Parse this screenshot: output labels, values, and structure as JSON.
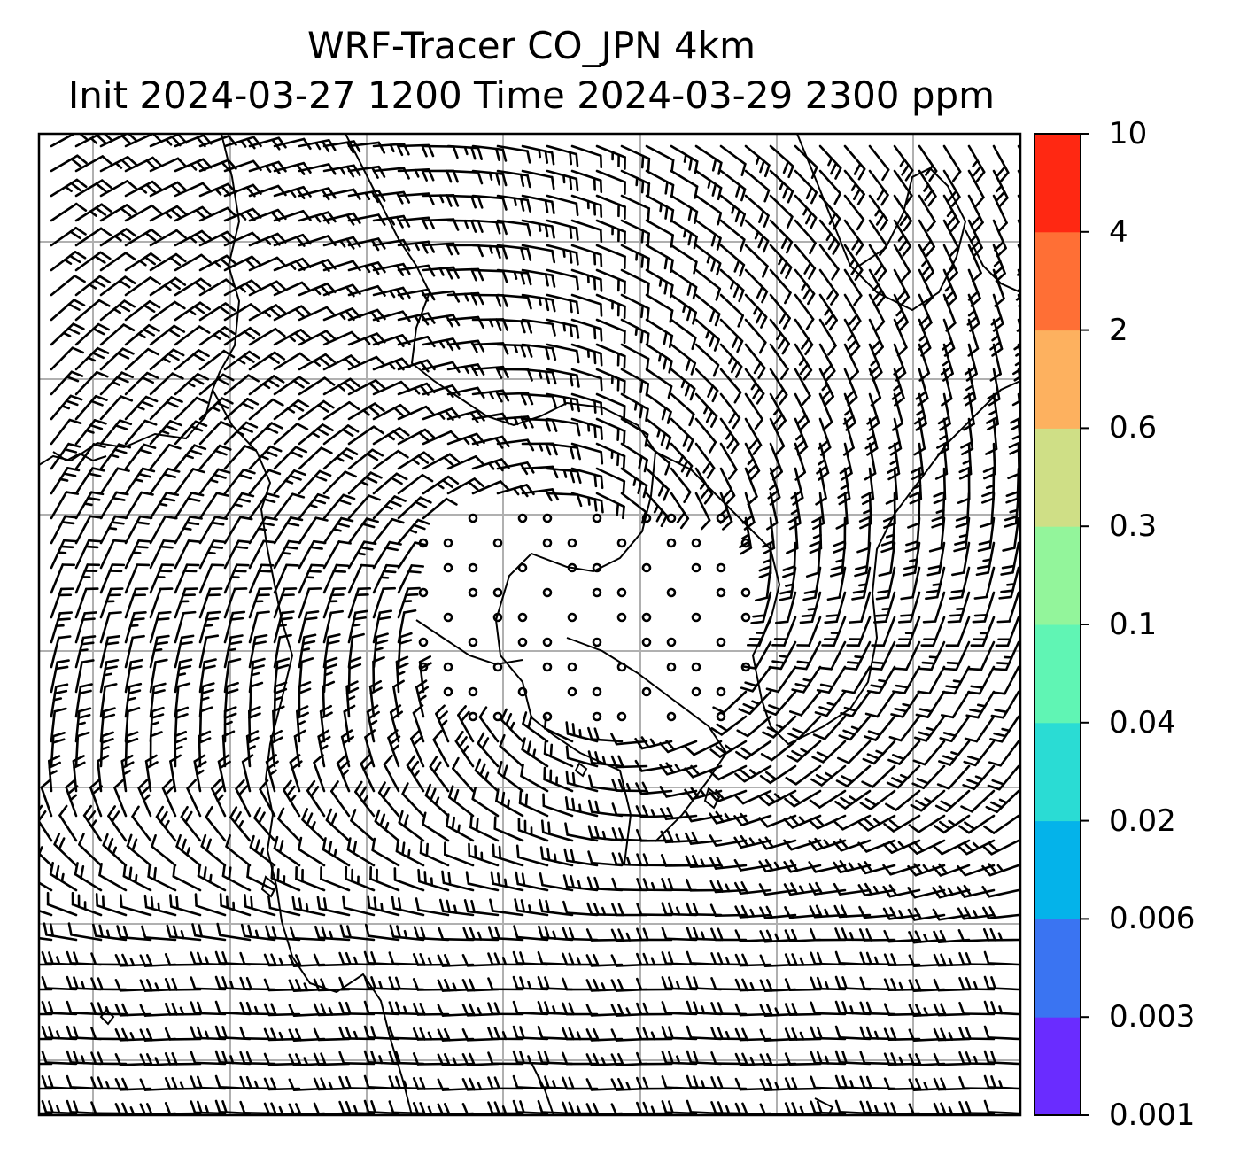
{
  "title": {
    "line1": "WRF-Tracer CO_JPN 4km",
    "line2": "Init 2024-03-27 1200 Time 2024-03-29 2300 ppm"
  },
  "colorbar": {
    "levels": [
      "0.001",
      "0.003",
      "0.006",
      "0.02",
      "0.04",
      "0.1",
      "0.3",
      "0.6",
      "2",
      "4",
      "10"
    ],
    "colors": [
      "#6a2cff",
      "#3a74f2",
      "#04b3ea",
      "#2adcd4",
      "#60f5b4",
      "#93f59b",
      "#cfdf86",
      "#fdb15f",
      "#ff6f35",
      "#ff2812"
    ]
  },
  "map": {
    "field": "CO tracer concentration",
    "wind_barbs": true,
    "gridlines": true,
    "coastlines": true
  }
}
